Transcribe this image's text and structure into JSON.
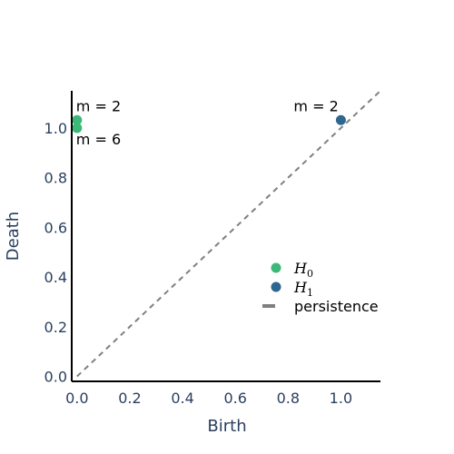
{
  "chart_data": {
    "type": "scatter",
    "xlabel": "Birth",
    "ylabel": "Death",
    "xlim": [
      -0.02,
      1.15
    ],
    "ylim": [
      -0.02,
      1.15
    ],
    "x_ticks": [
      0.0,
      0.2,
      0.4,
      0.6,
      0.8,
      1.0
    ],
    "x_tick_labels": [
      "0.0",
      "0.2",
      "0.4",
      "0.6",
      "0.8",
      "1.0"
    ],
    "y_ticks": [
      0.0,
      0.2,
      0.4,
      0.6,
      0.8,
      1.0
    ],
    "y_tick_labels": [
      "0.0",
      "0.2",
      "0.4",
      "0.6",
      "0.8",
      "1.0"
    ],
    "grid": false,
    "legend_placement": "lower-right",
    "series": [
      {
        "name": "H0",
        "name_base": "H",
        "name_sub": "0",
        "color": "#3cb878",
        "points": [
          {
            "x": 0.0,
            "y": 1.032
          },
          {
            "x": 0.0,
            "y": 1.0
          }
        ]
      },
      {
        "name": "H1",
        "name_base": "H",
        "name_sub": "1",
        "color": "#2e6690",
        "points": [
          {
            "x": 1.0,
            "y": 1.032
          }
        ]
      }
    ],
    "diagonal": {
      "name": "persistence",
      "color": "#7f7f7f",
      "from": [
        0.0,
        0.0
      ],
      "to": [
        1.15,
        1.15
      ]
    },
    "annotations": [
      {
        "text": "m = 2",
        "x": 0.0,
        "y": 1.032,
        "anchor": "above"
      },
      {
        "text": "m = 6",
        "x": 0.0,
        "y": 1.0,
        "anchor": "below"
      },
      {
        "text": "m = 2",
        "x": 1.0,
        "y": 1.032,
        "anchor": "above-left"
      }
    ]
  }
}
